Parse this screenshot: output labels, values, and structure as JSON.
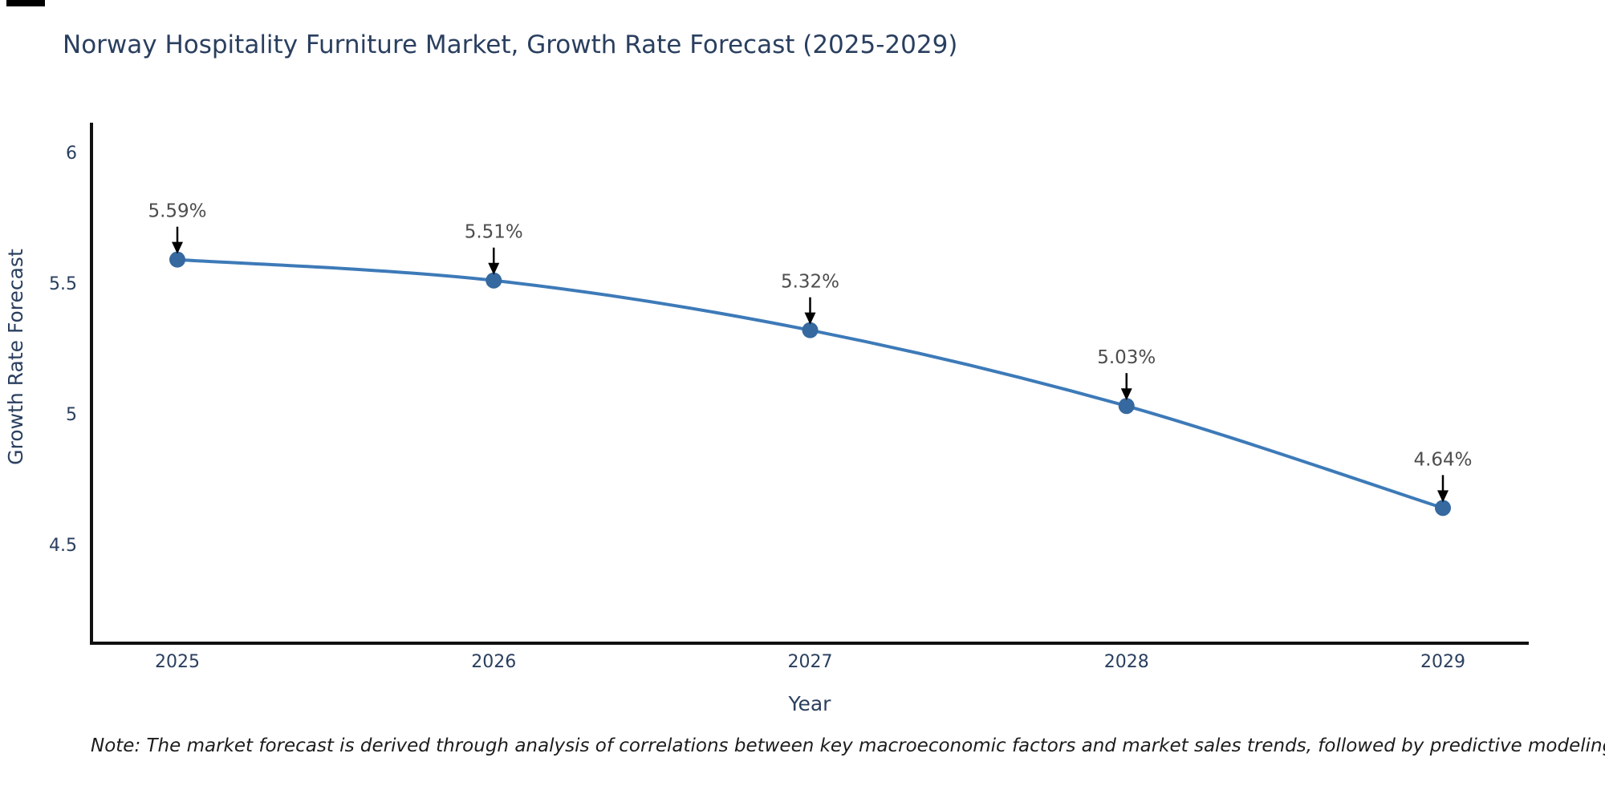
{
  "title": "Norway Hospitality Furniture Market, Growth Rate Forecast (2025-2029)",
  "note": "Note: The market forecast is derived through analysis of correlations between key macroeconomic factors and market sales trends, followed by predictive modeling to project future sales",
  "chart_data": {
    "type": "line",
    "title": "Norway Hospitality Furniture Market, Growth Rate Forecast (2025-2029)",
    "x": [
      "2025",
      "2026",
      "2027",
      "2028",
      "2029"
    ],
    "series": [
      {
        "name": "Growth Rate Forecast",
        "values": [
          5.59,
          5.51,
          5.32,
          5.03,
          4.64
        ]
      }
    ],
    "point_labels": [
      "5.59%",
      "5.51%",
      "5.32%",
      "5.03%",
      "4.64%"
    ],
    "xlabel": "Year",
    "ylabel": "Growth Rate Forecast",
    "y_ticks": [
      6,
      5.5,
      5,
      4.5
    ],
    "ylim": [
      4.12,
      6.11
    ],
    "grid": false,
    "legend": "none",
    "smooth": true,
    "line_color": "#3d7ab8",
    "marker_color": "#35699f",
    "axis_color": "#111111",
    "tick_color": "#2a3f5f",
    "annotation_color": "#4d4d4d",
    "arrow_color": "#000000"
  }
}
